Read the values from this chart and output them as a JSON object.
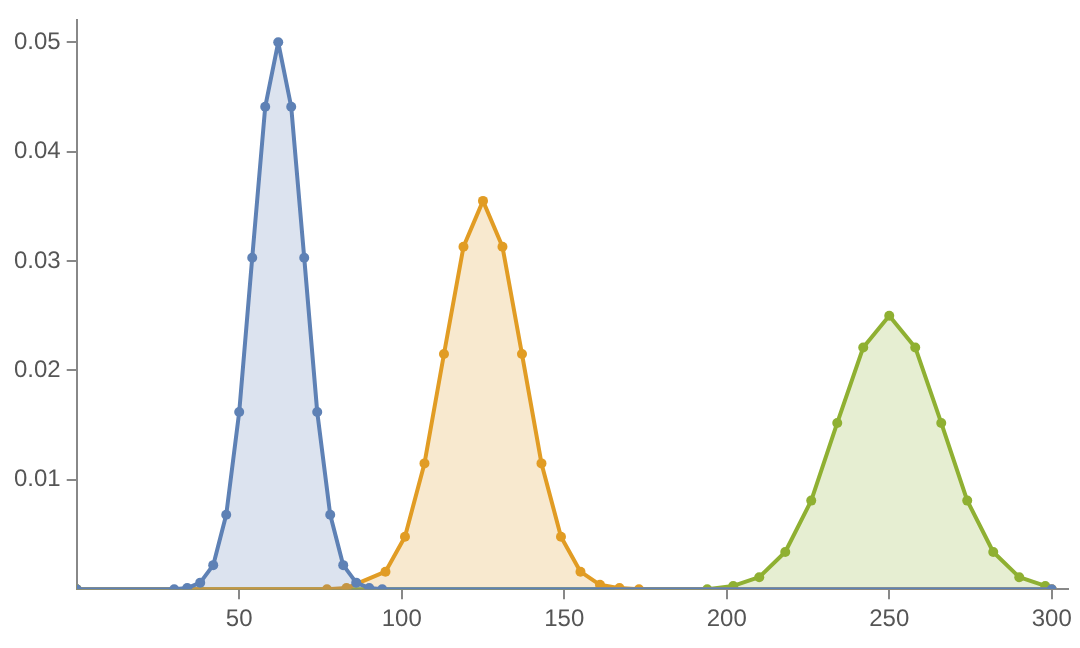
{
  "chart_data": {
    "type": "area",
    "xlim": [
      0,
      305
    ],
    "ylim": [
      0,
      0.052
    ],
    "xticks": [
      50,
      100,
      150,
      200,
      250,
      300
    ],
    "yticks": [
      0.01,
      0.02,
      0.03,
      0.04,
      0.05
    ],
    "grid": false,
    "legend": false,
    "marker": "circle",
    "series": [
      {
        "color": "#5e81b5",
        "x": [
          0,
          30,
          34,
          38,
          42,
          46,
          50,
          54,
          58,
          62,
          66,
          70,
          74,
          78,
          82,
          86,
          90,
          94,
          300
        ],
        "values": [
          0,
          0,
          0.0001,
          0.0006,
          0.0022,
          0.0068,
          0.0162,
          0.0303,
          0.0441,
          0.05,
          0.0441,
          0.0303,
          0.0162,
          0.0068,
          0.0022,
          0.0006,
          0.0001,
          0,
          0
        ]
      },
      {
        "color": "#e19c24",
        "x": [
          0,
          77,
          83,
          95,
          101,
          107,
          113,
          119,
          125,
          131,
          137,
          143,
          149,
          155,
          161,
          167,
          173,
          300
        ],
        "values": [
          0,
          0,
          0.0001,
          0.0016,
          0.0048,
          0.0115,
          0.0215,
          0.0313,
          0.0355,
          0.0313,
          0.0215,
          0.0115,
          0.0048,
          0.0016,
          0.0004,
          0.0001,
          0,
          0
        ]
      },
      {
        "color": "#8fb032",
        "x": [
          0,
          194,
          202,
          210,
          218,
          226,
          234,
          242,
          250,
          258,
          266,
          274,
          282,
          290,
          298
        ],
        "values": [
          0,
          0,
          0.0003,
          0.0011,
          0.0034,
          0.0081,
          0.0152,
          0.0221,
          0.025,
          0.0221,
          0.0152,
          0.0081,
          0.0034,
          0.0011,
          0.0003
        ]
      }
    ]
  }
}
